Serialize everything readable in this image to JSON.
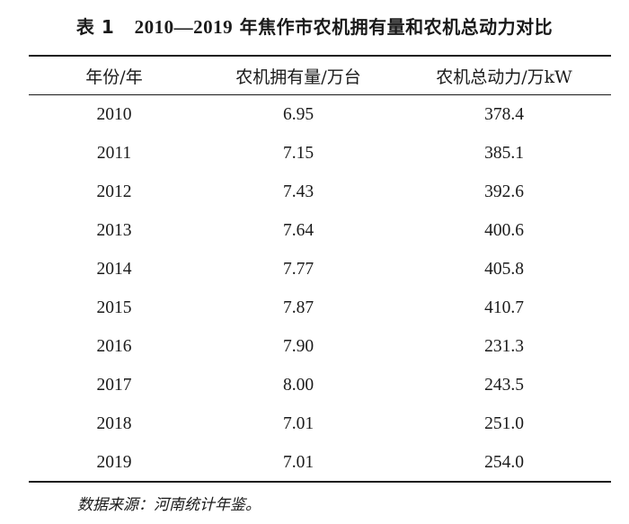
{
  "caption": {
    "label": "表 1",
    "years": "2010—2019",
    "text": "年焦作市农机拥有量和农机总动力对比"
  },
  "table": {
    "headers": [
      "年份/年",
      "农机拥有量/万台",
      "农机总动力/万kW"
    ],
    "rows": [
      [
        "2010",
        "6.95",
        "378.4"
      ],
      [
        "2011",
        "7.15",
        "385.1"
      ],
      [
        "2012",
        "7.43",
        "392.6"
      ],
      [
        "2013",
        "7.64",
        "400.6"
      ],
      [
        "2014",
        "7.77",
        "405.8"
      ],
      [
        "2015",
        "7.87",
        "410.7"
      ],
      [
        "2016",
        "7.90",
        "231.3"
      ],
      [
        "2017",
        "8.00",
        "243.5"
      ],
      [
        "2018",
        "7.01",
        "251.0"
      ],
      [
        "2019",
        "7.01",
        "254.0"
      ]
    ]
  },
  "source": "数据来源：河南统计年鉴。"
}
